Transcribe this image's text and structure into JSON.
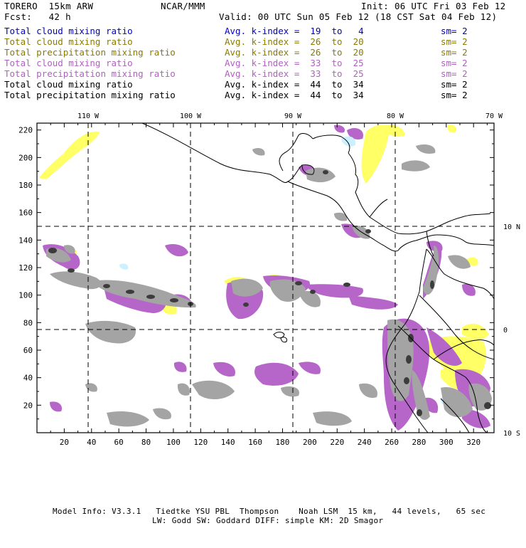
{
  "header": {
    "model": "TORERO  15km ARW",
    "org": "NCAR/MMM",
    "init": "Init: 06 UTC Fri 03 Feb 12",
    "fcst": "Fcst:   42 h",
    "valid": "Valid: 00 UTC Sun 05 Feb 12 (18 CST Sat 04 Feb 12)"
  },
  "legend": [
    {
      "field": "Total cloud mixing ratio",
      "kindex": "Avg. k-index =  19  to   4",
      "sm": "sm= 2",
      "color": "#0000cc"
    },
    {
      "field": "Total cloud mixing ratio",
      "kindex": "Avg. k-index =  26  to  20",
      "sm": "sm= 2",
      "color": "#8a7a00"
    },
    {
      "field": "Total precipitation mixing ratio",
      "kindex": "Avg. k-index =  26  to  20",
      "sm": "sm= 2",
      "color": "#8a7a00"
    },
    {
      "field": "Total cloud mixing ratio",
      "kindex": "Avg. k-index =  33  to  25",
      "sm": "sm= 2",
      "color": "#b060c0"
    },
    {
      "field": "Total precipitation mixing ratio",
      "kindex": "Avg. k-index =  33  to  25",
      "sm": "sm= 2",
      "color": "#b060c0"
    },
    {
      "field": "Total cloud mixing ratio",
      "kindex": "Avg. k-index =  44  to  34",
      "sm": "sm= 2",
      "color": "#000000"
    },
    {
      "field": "Total precipitation mixing ratio",
      "kindex": "Avg. k-index =  44  to  34",
      "sm": "sm= 2",
      "color": "#000000"
    }
  ],
  "map": {
    "lon_labels": [
      "110 W",
      "100 W",
      "90 W",
      "80 W",
      "70 W"
    ],
    "lat_labels": [
      "10 N",
      "0",
      "10 S"
    ],
    "x_ticks": [
      "20",
      "40",
      "60",
      "80",
      "100",
      "120",
      "140",
      "160",
      "180",
      "200",
      "220",
      "240",
      "260",
      "280",
      "300",
      "320"
    ],
    "y_ticks": [
      "220",
      "200",
      "180",
      "160",
      "140",
      "120",
      "100",
      "80",
      "60",
      "40",
      "20"
    ],
    "x_range": [
      0,
      335
    ],
    "y_range": [
      0,
      225
    ],
    "colors": {
      "yellow": "#ffff66",
      "purple": "#b566c8",
      "gray": "#a0a0a0",
      "dark": "#404040",
      "cyan": "#ccf0ff",
      "land": "#000000"
    }
  },
  "footer": {
    "line1": "Model Info: V3.3.1   Tiedtke YSU PBL  Thompson    Noah LSM  15 km,   44 levels,   65 sec",
    "line2": "LW: Godd SW: Goddard DIFF: simple KM: 2D Smagor"
  }
}
